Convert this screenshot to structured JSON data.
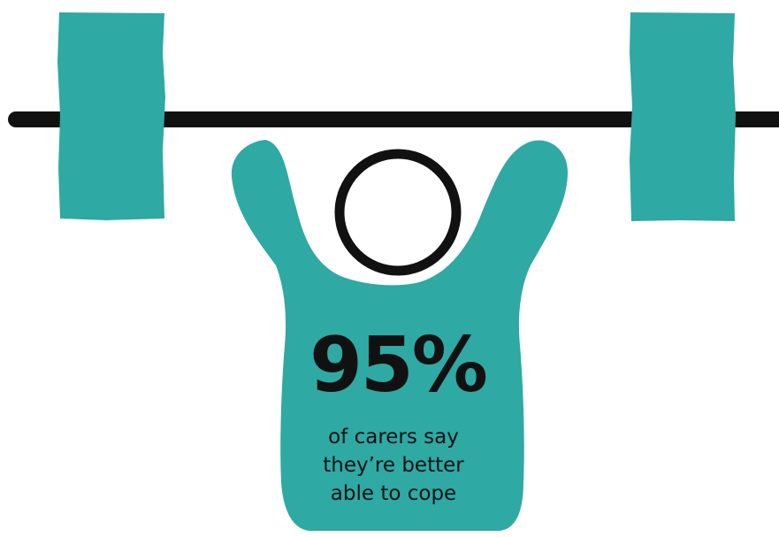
{
  "stat": {
    "value": "95%"
  },
  "caption": {
    "lines": [
      "of carers say",
      "they’re better",
      "able to cope"
    ]
  },
  "colors": {
    "accent": "#2ea9a3",
    "ink": "#111111",
    "background": "#ffffff"
  },
  "icons": {
    "illustration": "weightlifter-icon"
  }
}
